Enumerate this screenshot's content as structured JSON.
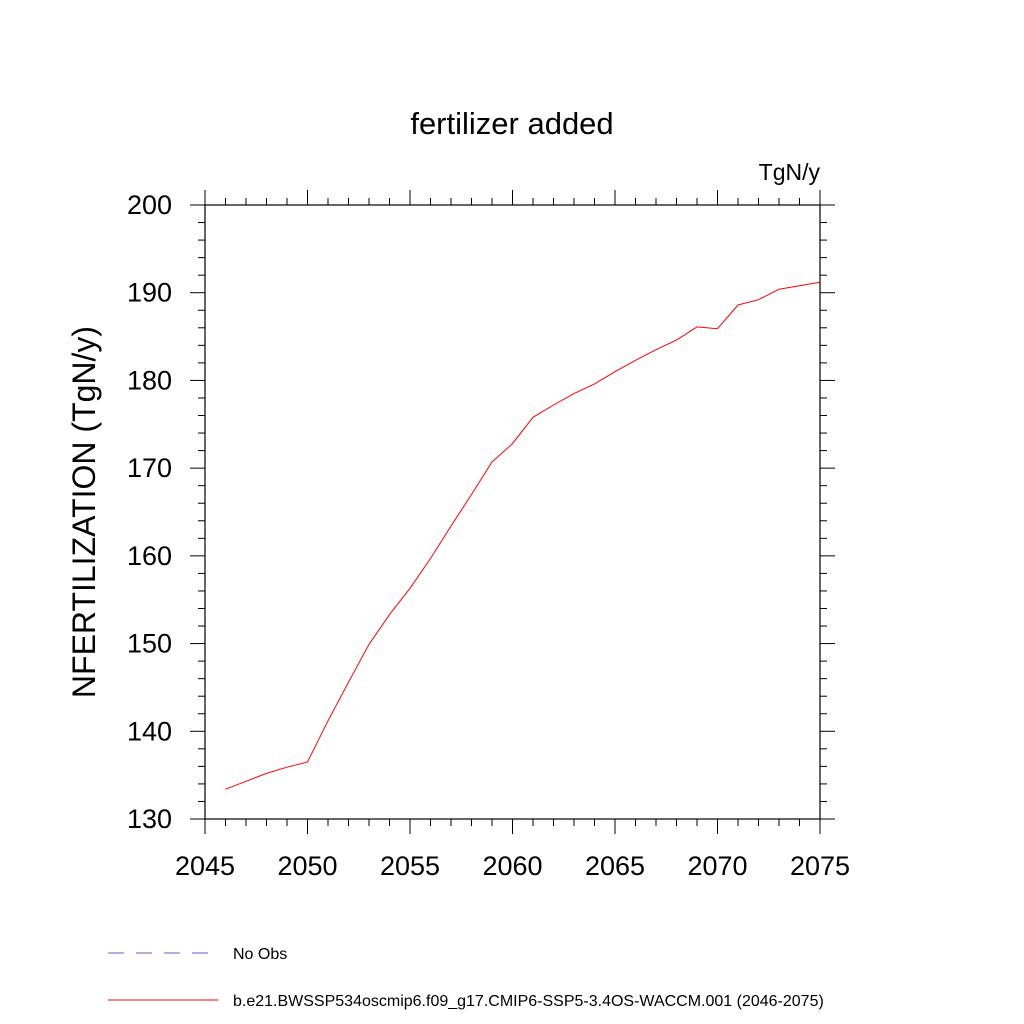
{
  "chart_data": {
    "type": "line",
    "title": "fertilizer added",
    "units": "TgN/y",
    "ylabel": "NFERTILIZATION  (TgN/y)",
    "xlabel": "",
    "xlim": [
      2045,
      2075
    ],
    "ylim": [
      130,
      200
    ],
    "xticks": [
      "2045",
      "2050",
      "2055",
      "2060",
      "2065",
      "2070",
      "2075"
    ],
    "yticks": [
      "130",
      "140",
      "150",
      "160",
      "170",
      "180",
      "190",
      "200"
    ],
    "grid": false,
    "legend_position": "bottom-left",
    "series": [
      {
        "name": "b.e21.BWSSP534oscmip6.f09_g17.CMIP6-SSP5-3.4OS-WACCM.001 (2046-2075)",
        "color": "#ff0000",
        "style": "solid",
        "x": [
          2046,
          2047,
          2048,
          2049,
          2050,
          2051,
          2052,
          2053,
          2054,
          2055,
          2056,
          2057,
          2058,
          2059,
          2060,
          2061,
          2062,
          2063,
          2064,
          2065,
          2066,
          2067,
          2068,
          2069,
          2070,
          2071,
          2072,
          2073,
          2074,
          2075
        ],
        "y": [
          133.4,
          134.3,
          135.2,
          135.9,
          136.5,
          141.2,
          145.6,
          149.9,
          153.3,
          156.3,
          159.7,
          163.4,
          167.0,
          170.7,
          172.8,
          175.8,
          177.2,
          178.5,
          179.6,
          181.0,
          182.3,
          183.5,
          184.6,
          186.1,
          185.9,
          188.6,
          189.2,
          190.4,
          190.8,
          191.2
        ]
      }
    ],
    "legend": [
      {
        "label": "No Obs",
        "color": "#6a5acd",
        "style": "dashed"
      },
      {
        "label": "b.e21.BWSSP534oscmip6.f09_g17.CMIP6-SSP5-3.4OS-WACCM.001 (2046-2075)",
        "color": "#ff0000",
        "style": "solid"
      }
    ]
  }
}
